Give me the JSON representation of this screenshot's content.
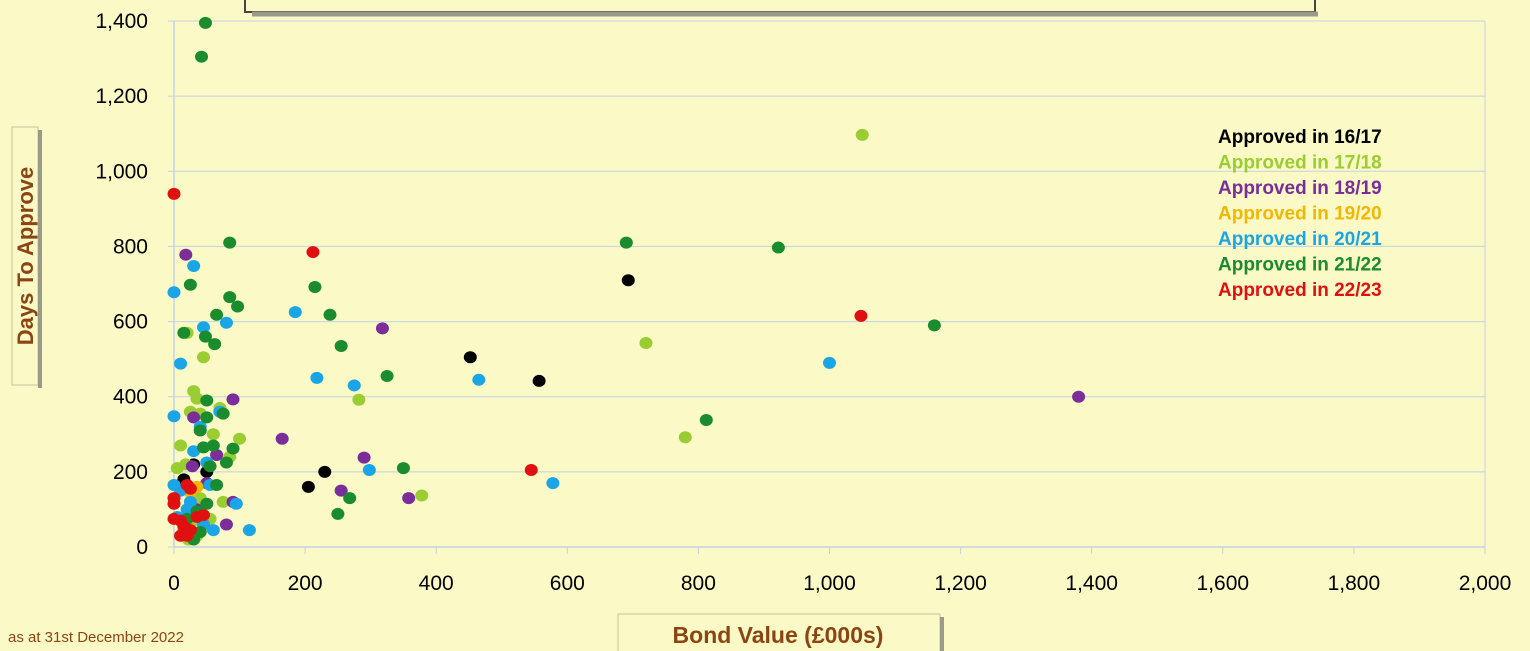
{
  "chart_data": {
    "type": "scatter",
    "title": "",
    "xlabel": "Bond Value (£000s)",
    "ylabel": "Days To Approve",
    "xlim": [
      0,
      2000
    ],
    "ylim": [
      0,
      1400
    ],
    "xticks": [
      "0",
      "200",
      "400",
      "600",
      "800",
      "1,000",
      "1,200",
      "1,400",
      "1,600",
      "1,800",
      "2,000"
    ],
    "yticks": [
      "0",
      "200",
      "400",
      "600",
      "800",
      "1,000",
      "1,200",
      "1,400"
    ],
    "grid": "horizontal",
    "legend_position": "right",
    "footnote": "as at 31st December 2022",
    "series": [
      {
        "name": "Approved in 16/17",
        "color": "#000000",
        "points": [
          [
            50,
            200
          ],
          [
            15,
            180
          ],
          [
            205,
            160
          ],
          [
            230,
            200
          ],
          [
            452,
            505
          ],
          [
            557,
            442
          ],
          [
            693,
            710
          ],
          [
            30,
            220
          ]
        ]
      },
      {
        "name": "Approved in 17/18",
        "color": "#9acd32",
        "points": [
          [
            1050,
            1097
          ],
          [
            720,
            543
          ],
          [
            780,
            292
          ],
          [
            378,
            137
          ],
          [
            282,
            392
          ],
          [
            100,
            288
          ],
          [
            30,
            415
          ],
          [
            35,
            395
          ],
          [
            45,
            505
          ],
          [
            20,
            570
          ],
          [
            25,
            360
          ],
          [
            10,
            270
          ],
          [
            5,
            210
          ],
          [
            18,
            220
          ],
          [
            60,
            300
          ],
          [
            70,
            370
          ],
          [
            75,
            120
          ],
          [
            40,
            130
          ],
          [
            30,
            110
          ],
          [
            25,
            60
          ],
          [
            22,
            20
          ],
          [
            35,
            30
          ],
          [
            15,
            45
          ],
          [
            55,
            75
          ],
          [
            40,
            355
          ],
          [
            85,
            240
          ]
        ]
      },
      {
        "name": "Approved in 18/19",
        "color": "#7b2d9a",
        "points": [
          [
            1380,
            400
          ],
          [
            318,
            582
          ],
          [
            165,
            288
          ],
          [
            90,
            393
          ],
          [
            290,
            238
          ],
          [
            255,
            150
          ],
          [
            358,
            130
          ],
          [
            80,
            60
          ],
          [
            18,
            778
          ],
          [
            30,
            345
          ],
          [
            28,
            215
          ],
          [
            65,
            245
          ],
          [
            90,
            120
          ],
          [
            50,
            170
          ],
          [
            35,
            100
          ]
        ]
      },
      {
        "name": "Approved in 19/20",
        "color": "#f2b705",
        "points": [
          [
            25,
            145
          ],
          [
            35,
            160
          ]
        ]
      },
      {
        "name": "Approved in 20/21",
        "color": "#1aa6e6",
        "points": [
          [
            1000,
            490
          ],
          [
            578,
            170
          ],
          [
            465,
            445
          ],
          [
            298,
            205
          ],
          [
            275,
            430
          ],
          [
            218,
            450
          ],
          [
            185,
            625
          ],
          [
            30,
            748
          ],
          [
            0,
            678
          ],
          [
            45,
            585
          ],
          [
            80,
            597
          ],
          [
            70,
            360
          ],
          [
            0,
            348
          ],
          [
            10,
            488
          ],
          [
            40,
            320
          ],
          [
            50,
            225
          ],
          [
            55,
            165
          ],
          [
            30,
            255
          ],
          [
            10,
            150
          ],
          [
            0,
            165
          ],
          [
            20,
            100
          ],
          [
            45,
            60
          ],
          [
            60,
            45
          ],
          [
            95,
            115
          ],
          [
            115,
            45
          ],
          [
            25,
            120
          ],
          [
            5,
            80
          ]
        ]
      },
      {
        "name": "Approved in 21/22",
        "color": "#1a8c2e",
        "points": [
          [
            48,
            1395
          ],
          [
            42,
            1305
          ],
          [
            85,
            810
          ],
          [
            690,
            810
          ],
          [
            922,
            797
          ],
          [
            1160,
            590
          ],
          [
            812,
            338
          ],
          [
            350,
            210
          ],
          [
            325,
            455
          ],
          [
            268,
            130
          ],
          [
            255,
            535
          ],
          [
            250,
            88
          ],
          [
            238,
            618
          ],
          [
            215,
            692
          ],
          [
            25,
            698
          ],
          [
            85,
            665
          ],
          [
            97,
            640
          ],
          [
            65,
            618
          ],
          [
            48,
            560
          ],
          [
            15,
            570
          ],
          [
            62,
            540
          ],
          [
            50,
            390
          ],
          [
            50,
            345
          ],
          [
            75,
            355
          ],
          [
            40,
            310
          ],
          [
            60,
            270
          ],
          [
            45,
            265
          ],
          [
            90,
            262
          ],
          [
            80,
            225
          ],
          [
            55,
            215
          ],
          [
            65,
            165
          ],
          [
            50,
            115
          ],
          [
            35,
            95
          ],
          [
            20,
            75
          ],
          [
            40,
            40
          ],
          [
            30,
            20
          ]
        ]
      },
      {
        "name": "Approved in 22/23",
        "color": "#e01010",
        "points": [
          [
            0,
            940
          ],
          [
            212,
            785
          ],
          [
            1048,
            615
          ],
          [
            545,
            205
          ],
          [
            20,
            165
          ],
          [
            25,
            155
          ],
          [
            0,
            130
          ],
          [
            0,
            115
          ],
          [
            0,
            75
          ],
          [
            10,
            70
          ],
          [
            15,
            55
          ],
          [
            25,
            45
          ],
          [
            10,
            30
          ],
          [
            20,
            30
          ],
          [
            35,
            80
          ],
          [
            45,
            85
          ]
        ]
      }
    ]
  }
}
